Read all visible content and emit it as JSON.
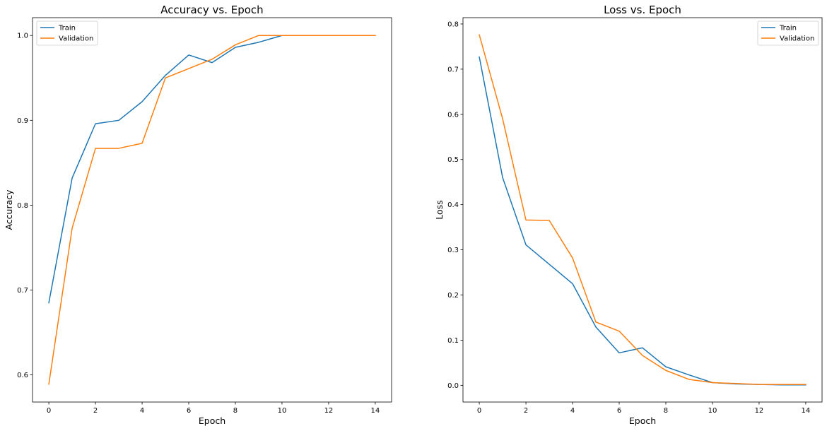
{
  "chart_data": [
    {
      "type": "line",
      "title": "Accuracy vs. Epoch",
      "xlabel": "Epoch",
      "ylabel": "Accuracy",
      "xlim": [
        -0.7,
        14.7
      ],
      "ylim": [
        0.568,
        1.021
      ],
      "xticks": [
        0,
        2,
        4,
        6,
        8,
        10,
        12,
        14
      ],
      "yticks": [
        0.6,
        0.7,
        0.8,
        0.9,
        1.0
      ],
      "ytick_labels": [
        "0.6",
        "0.7",
        "0.8",
        "0.9",
        "1.0"
      ],
      "legend_position": "top-left",
      "x": [
        0,
        1,
        2,
        3,
        4,
        5,
        6,
        7,
        8,
        9,
        10,
        11,
        12,
        13,
        14
      ],
      "series": [
        {
          "name": "Train",
          "color": "#1f77b4",
          "values": [
            0.685,
            0.832,
            0.896,
            0.9,
            0.922,
            0.953,
            0.977,
            0.968,
            0.986,
            0.992,
            1.0,
            1.0,
            1.0,
            1.0,
            1.0
          ]
        },
        {
          "name": "Validation",
          "color": "#ff7f0e",
          "values": [
            0.589,
            0.773,
            0.867,
            0.867,
            0.873,
            0.95,
            0.961,
            0.972,
            0.989,
            1.0,
            1.0,
            1.0,
            1.0,
            1.0,
            1.0
          ]
        }
      ]
    },
    {
      "type": "line",
      "title": "Loss vs. Epoch",
      "xlabel": "Epoch",
      "ylabel": "Loss",
      "xlim": [
        -0.7,
        14.7
      ],
      "ylim": [
        -0.037,
        0.814
      ],
      "xticks": [
        0,
        2,
        4,
        6,
        8,
        10,
        12,
        14
      ],
      "yticks": [
        0.0,
        0.1,
        0.2,
        0.3,
        0.4,
        0.5,
        0.6,
        0.7,
        0.8
      ],
      "ytick_labels": [
        "0.0",
        "0.1",
        "0.2",
        "0.3",
        "0.4",
        "0.5",
        "0.6",
        "0.7",
        "0.8"
      ],
      "legend_position": "top-right",
      "x": [
        0,
        1,
        2,
        3,
        4,
        5,
        6,
        7,
        8,
        9,
        10,
        11,
        12,
        13,
        14
      ],
      "series": [
        {
          "name": "Train",
          "color": "#1f77b4",
          "values": [
            0.727,
            0.46,
            0.311,
            0.268,
            0.225,
            0.129,
            0.072,
            0.083,
            0.041,
            0.023,
            0.006,
            0.003,
            0.002,
            0.001,
            0.001
          ]
        },
        {
          "name": "Validation",
          "color": "#ff7f0e",
          "values": [
            0.776,
            0.59,
            0.366,
            0.365,
            0.282,
            0.14,
            0.12,
            0.066,
            0.033,
            0.013,
            0.006,
            0.004,
            0.002,
            0.002,
            0.002
          ]
        }
      ]
    }
  ]
}
